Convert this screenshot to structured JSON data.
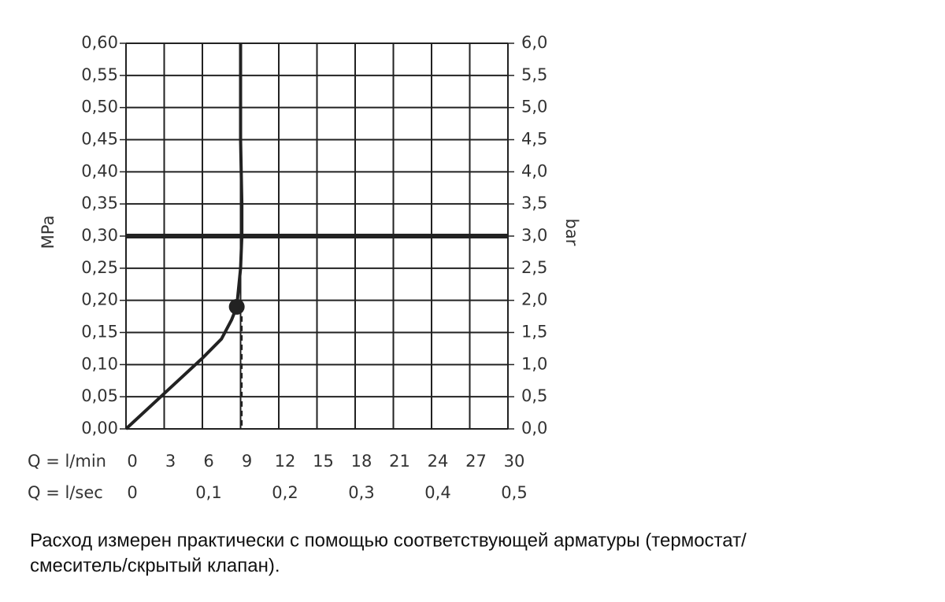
{
  "chart_data": {
    "type": "line",
    "xlabel": "Q = l/min",
    "x2label": "Q = l/sec",
    "ylabel": "MPa",
    "y2label": "bar",
    "xlim": [
      0,
      30
    ],
    "xticks": [
      0,
      3,
      6,
      9,
      12,
      15,
      18,
      21,
      24,
      27,
      30
    ],
    "x2lim": [
      0,
      0.5
    ],
    "x2ticks": [
      0,
      {
        "value": 0.1,
        "label": "0,1"
      },
      {
        "value": 0.2,
        "label": "0,2"
      },
      {
        "value": 0.3,
        "label": "0,3"
      },
      {
        "value": 0.4,
        "label": "0,4"
      },
      {
        "value": 0.5,
        "label": "0,5"
      }
    ],
    "ylim": [
      0,
      0.6
    ],
    "yticks": [
      {
        "value": 0,
        "label": "0,00"
      },
      {
        "value": 0.05,
        "label": "0,05"
      },
      {
        "value": 0.1,
        "label": "0,10"
      },
      {
        "value": 0.15,
        "label": "0,15"
      },
      {
        "value": 0.2,
        "label": "0,20"
      },
      {
        "value": 0.25,
        "label": "0,25"
      },
      {
        "value": 0.3,
        "label": "0,30"
      },
      {
        "value": 0.35,
        "label": "0,35"
      },
      {
        "value": 0.4,
        "label": "0,40"
      },
      {
        "value": 0.45,
        "label": "0,45"
      },
      {
        "value": 0.5,
        "label": "0,50"
      },
      {
        "value": 0.55,
        "label": "0,55"
      },
      {
        "value": 0.6,
        "label": "0,60"
      }
    ],
    "y2lim": [
      0,
      6
    ],
    "y2ticks": [
      {
        "value": 0,
        "label": "0,0"
      },
      {
        "value": 0.5,
        "label": "0,5"
      },
      {
        "value": 1,
        "label": "1,0"
      },
      {
        "value": 1.5,
        "label": "1,5"
      },
      {
        "value": 2,
        "label": "2,0"
      },
      {
        "value": 2.5,
        "label": "2,5"
      },
      {
        "value": 3,
        "label": "3,0"
      },
      {
        "value": 3.5,
        "label": "3,5"
      },
      {
        "value": 4,
        "label": "4,0"
      },
      {
        "value": 4.5,
        "label": "4,5"
      },
      {
        "value": 5,
        "label": "5,0"
      },
      {
        "value": 5.5,
        "label": "5,5"
      },
      {
        "value": 6,
        "label": "6,0"
      }
    ],
    "grid": true,
    "series": [
      {
        "color": "#222222",
        "x": [
          0,
          3,
          6,
          7.5,
          8.3,
          8.7,
          9.0,
          9.1,
          9.1,
          9.0,
          9.0
        ],
        "values": [
          0,
          0.055,
          0.11,
          0.14,
          0.17,
          0.19,
          0.25,
          0.3,
          0.35,
          0.45,
          0.6
        ]
      }
    ],
    "reference_line": 0.3,
    "marker": {
      "x": 8.7,
      "y": 0.19
    },
    "dashed_line_x": 9.1,
    "caption": [
      "Расход измерен практически с помощью соответствующей арматуры (термостат/",
      "смеситель/скрытый клапан)."
    ]
  }
}
